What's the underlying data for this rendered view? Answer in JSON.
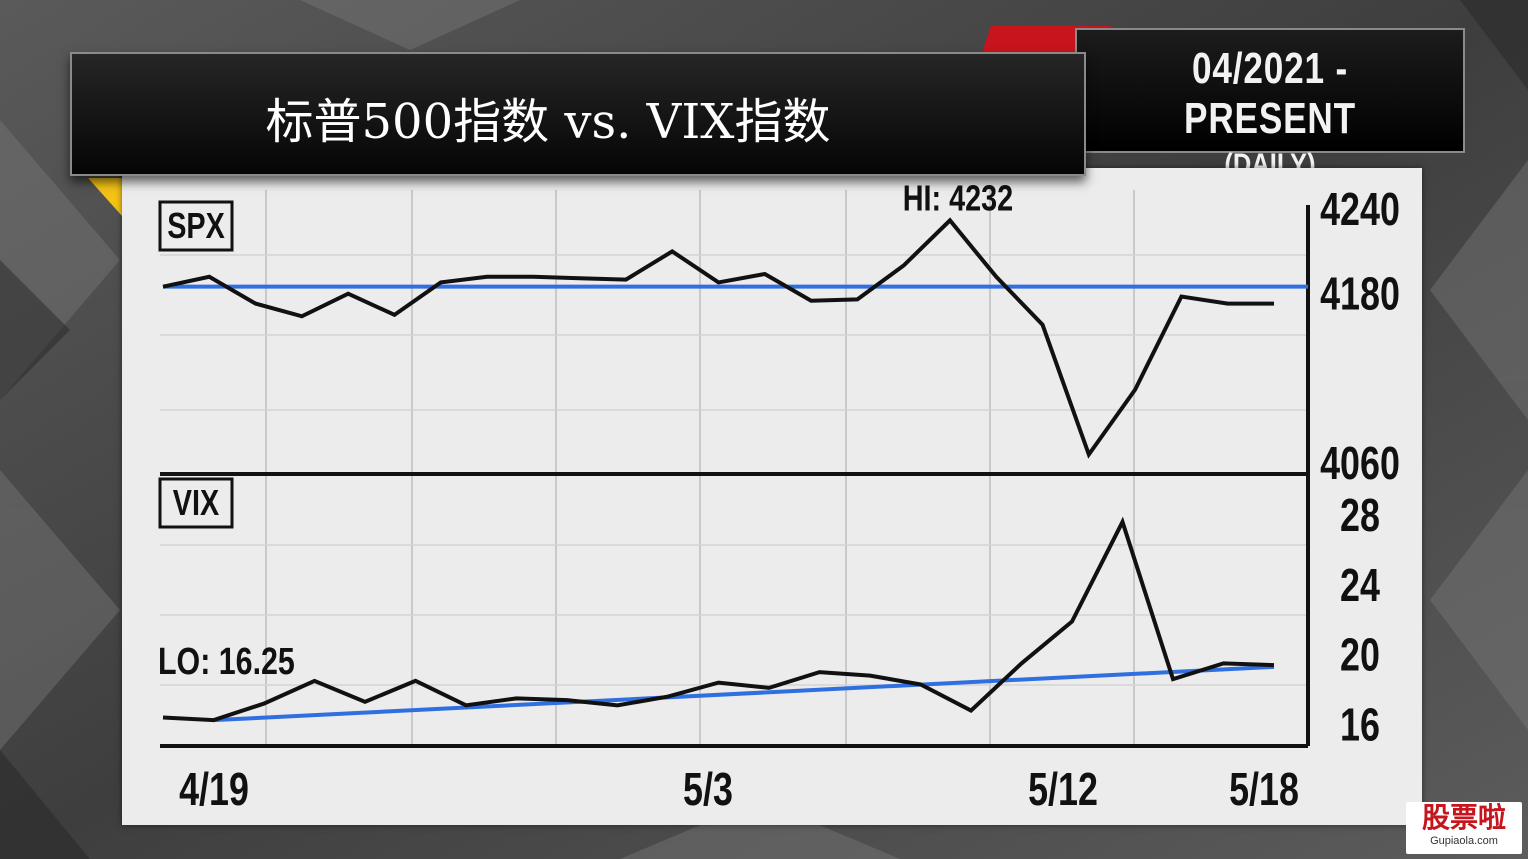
{
  "header": {
    "title": "标普500指数 vs. VIX指数",
    "date_range": "04/2021 - PRESENT",
    "frequency": "(DAILY)"
  },
  "colors": {
    "line": "#111111",
    "trend": "#2f6fe0",
    "accent_red": "#c8141c",
    "accent_yellow": "#f3c316"
  },
  "chart_data": [
    {
      "type": "line",
      "label": "SPX",
      "x_ticks": [
        "4/19",
        "5/3",
        "5/12",
        "5/18"
      ],
      "y_ticks": [
        4240,
        4180,
        4060
      ],
      "ylim": [
        4055,
        4250
      ],
      "annotation": "HI: 4232",
      "series": [
        {
          "values": [
            4185,
            4192,
            4173,
            4164,
            4180,
            4165,
            4188,
            4192,
            4192,
            4191,
            4190,
            4210,
            4188,
            4194,
            4175,
            4176,
            4200,
            4232,
            4192,
            4158,
            4066,
            4112,
            4178,
            4173,
            4173
          ]
        }
      ],
      "reference_line": 4185
    },
    {
      "type": "line",
      "label": "VIX",
      "x_ticks": [
        "4/19",
        "5/3",
        "5/12",
        "5/18"
      ],
      "y_ticks": [
        28,
        24,
        20,
        16
      ],
      "ylim": [
        15.0,
        30.0
      ],
      "annotation": "LO: 16.25",
      "series": [
        {
          "values": [
            16.4,
            16.25,
            17.2,
            18.5,
            17.3,
            18.5,
            17.1,
            17.5,
            17.4,
            17.1,
            17.6,
            18.4,
            18.1,
            19.0,
            18.8,
            18.3,
            16.8,
            19.5,
            21.9,
            27.6,
            18.6,
            19.5,
            19.4
          ]
        }
      ],
      "trend_line": [
        16.25,
        19.3
      ]
    }
  ]
}
